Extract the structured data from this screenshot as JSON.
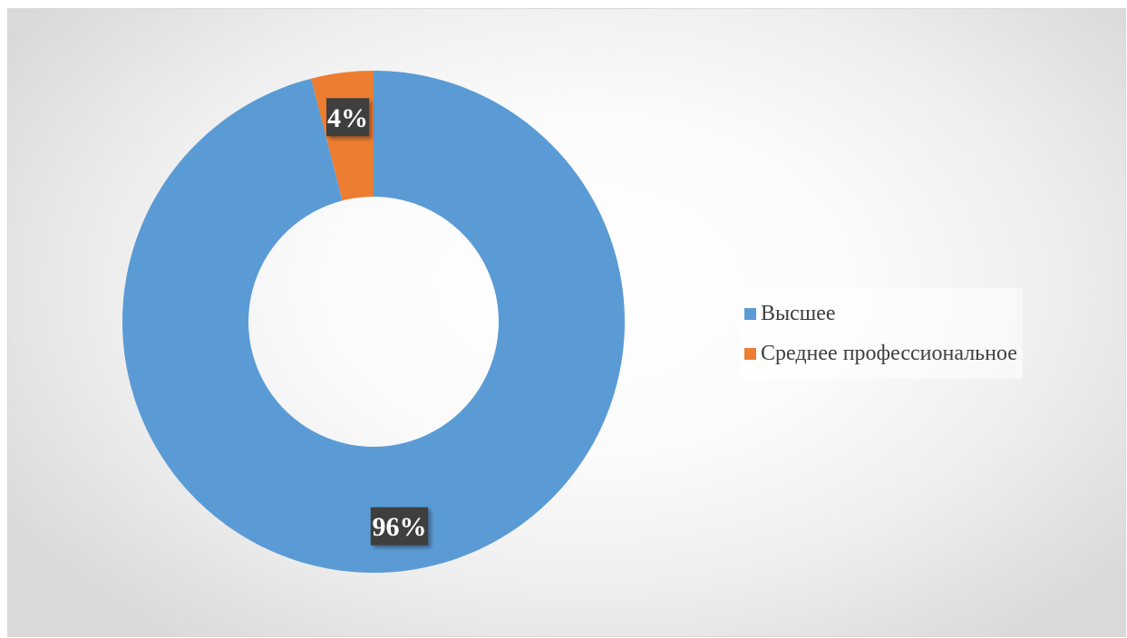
{
  "chart_data": {
    "type": "pie",
    "variant": "doughnut",
    "categories": [
      "Высшее",
      "Среднее профессиональное"
    ],
    "values": [
      96,
      4
    ],
    "value_labels": [
      "96%",
      "4%"
    ],
    "colors": [
      "#5b9bd5",
      "#ed7d31"
    ],
    "title": "",
    "legend_position": "right",
    "label_style": "dark box, white bold text"
  },
  "legend": {
    "items": [
      {
        "label": "Высшее",
        "color": "#5b9bd5"
      },
      {
        "label": "Среднее профессиональное",
        "color": "#ed7d31"
      }
    ]
  }
}
